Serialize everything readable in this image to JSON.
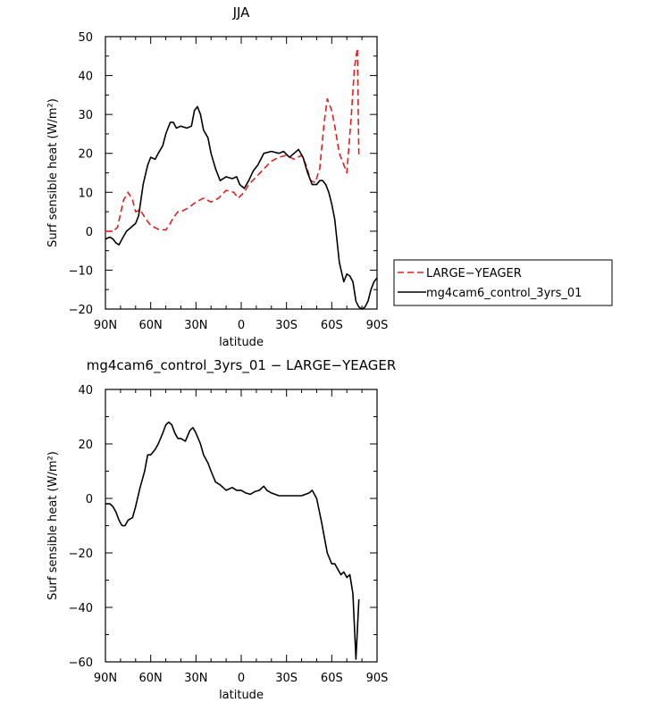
{
  "chart_data": [
    {
      "type": "line",
      "title": "JJA",
      "xlabel": "latitude",
      "ylabel": "Surf sensible heat (W/m²)",
      "xlim": [
        90,
        -90
      ],
      "ylim": [
        -20,
        50
      ],
      "xticks": [
        90,
        60,
        30,
        0,
        -30,
        -60,
        -90
      ],
      "xtick_labels": [
        "90N",
        "60N",
        "30N",
        "0",
        "30S",
        "60S",
        "90S"
      ],
      "yticks": [
        -20,
        -10,
        0,
        10,
        20,
        30,
        40,
        50
      ],
      "ytick_labels": [
        "−20",
        "−10",
        "0",
        "10",
        "20",
        "30",
        "40",
        "50"
      ],
      "legend": "right",
      "series": [
        {
          "name": "LARGE−YEAGER",
          "color": "#e02020",
          "dash": "dashed",
          "x": [
            90,
            85,
            82,
            78,
            75,
            72,
            70,
            67,
            63,
            60,
            55,
            50,
            47,
            45,
            42,
            40,
            35,
            30,
            25,
            20,
            15,
            10,
            5,
            2,
            -2,
            -5,
            -10,
            -15,
            -20,
            -25,
            -30,
            -35,
            -40,
            -43,
            -46,
            -49,
            -52,
            -55,
            -57,
            -60,
            -62,
            -65,
            -67,
            -70,
            -73,
            -75,
            -77,
            -78
          ],
          "y": [
            0,
            0,
            1,
            8,
            10,
            8,
            5,
            5.5,
            3,
            1.5,
            0.5,
            0.3,
            2,
            3.5,
            5,
            5,
            6,
            7.5,
            8.5,
            7.5,
            8.5,
            10.5,
            10,
            8.5,
            10,
            12,
            14,
            16,
            18,
            19,
            19.5,
            18.5,
            19.5,
            17,
            13,
            12.5,
            16,
            28,
            34,
            31,
            27,
            20,
            18,
            15,
            30,
            42,
            47,
            19
          ]
        },
        {
          "name": "mg4cam6_control_3yrs_01",
          "color": "#000000",
          "dash": "solid",
          "x": [
            90,
            87,
            85,
            83,
            81,
            79,
            76,
            73,
            70,
            68,
            65,
            62,
            60,
            57,
            55,
            52,
            50,
            47,
            45,
            43,
            40,
            36,
            33,
            31,
            29,
            27,
            25,
            22,
            20,
            17,
            14,
            10,
            6,
            3,
            1,
            -2,
            -5,
            -8,
            -11,
            -15,
            -20,
            -25,
            -28,
            -32,
            -35,
            -38,
            -41,
            -44,
            -47,
            -50,
            -52,
            -54,
            -56,
            -58,
            -60,
            -62,
            -65,
            -68,
            -70,
            -72,
            -74,
            -76,
            -78,
            -80,
            -82,
            -84,
            -86,
            -88,
            -90
          ],
          "y": [
            -2,
            -1.5,
            -2,
            -3,
            -3.5,
            -2,
            0,
            1,
            2,
            4,
            12,
            17,
            19,
            18.5,
            20,
            22,
            25,
            28,
            28,
            26.5,
            27,
            26.5,
            27,
            31,
            32,
            30,
            26,
            24,
            20,
            16,
            13,
            14,
            13.5,
            14,
            12,
            11,
            13,
            15.5,
            17,
            20,
            20.5,
            20,
            20.5,
            19,
            20,
            21,
            19,
            15,
            12,
            12,
            13,
            13,
            12,
            10,
            7,
            3,
            -8,
            -13,
            -11,
            -11.5,
            -13,
            -18,
            -19.5,
            -20,
            -19.5,
            -18,
            -15,
            -13,
            -12
          ]
        }
      ]
    },
    {
      "type": "line",
      "title": "mg4cam6_control_3yrs_01 − LARGE−YEAGER",
      "xlabel": "latitude",
      "ylabel": "Surf sensible heat (W/m²)",
      "xlim": [
        90,
        -90
      ],
      "ylim": [
        -60,
        40
      ],
      "xticks": [
        90,
        60,
        30,
        0,
        -30,
        -60,
        -90
      ],
      "xtick_labels": [
        "90N",
        "60N",
        "30N",
        "0",
        "30S",
        "60S",
        "90S"
      ],
      "yticks": [
        -60,
        -40,
        -20,
        0,
        20,
        40
      ],
      "ytick_labels": [
        "−60",
        "−40",
        "−20",
        "0",
        "20",
        "40"
      ],
      "series": [
        {
          "color": "#000000",
          "dash": "solid",
          "x": [
            90,
            87,
            85,
            83,
            81,
            79,
            77,
            75,
            72,
            70,
            67,
            64,
            62,
            60,
            57,
            55,
            52,
            50,
            48,
            46,
            44,
            42,
            40,
            37,
            34,
            32,
            30,
            27,
            25,
            22,
            20,
            17,
            14,
            10,
            6,
            3,
            0,
            -3,
            -6,
            -9,
            -12,
            -15,
            -17,
            -20,
            -25,
            -30,
            -35,
            -40,
            -45,
            -47,
            -50,
            -53,
            -55,
            -57,
            -60,
            -62,
            -64,
            -66,
            -68,
            -70,
            -72,
            -74,
            -76,
            -78
          ],
          "y": [
            -2,
            -2,
            -3,
            -5,
            -8,
            -10,
            -10,
            -8,
            -7,
            -3,
            4,
            10,
            16,
            16,
            18,
            20,
            24,
            27,
            28,
            27,
            24,
            22,
            22,
            21,
            25,
            26,
            24,
            20,
            16,
            13,
            10,
            6,
            5,
            3,
            4,
            3,
            3,
            2,
            1.5,
            2.5,
            3,
            4.5,
            3,
            2,
            1,
            1,
            1,
            1,
            2,
            3,
            0,
            -8,
            -14,
            -20,
            -24,
            -24,
            -26,
            -28,
            -27,
            -29,
            -28,
            -35,
            -59,
            -37
          ]
        }
      ]
    }
  ]
}
